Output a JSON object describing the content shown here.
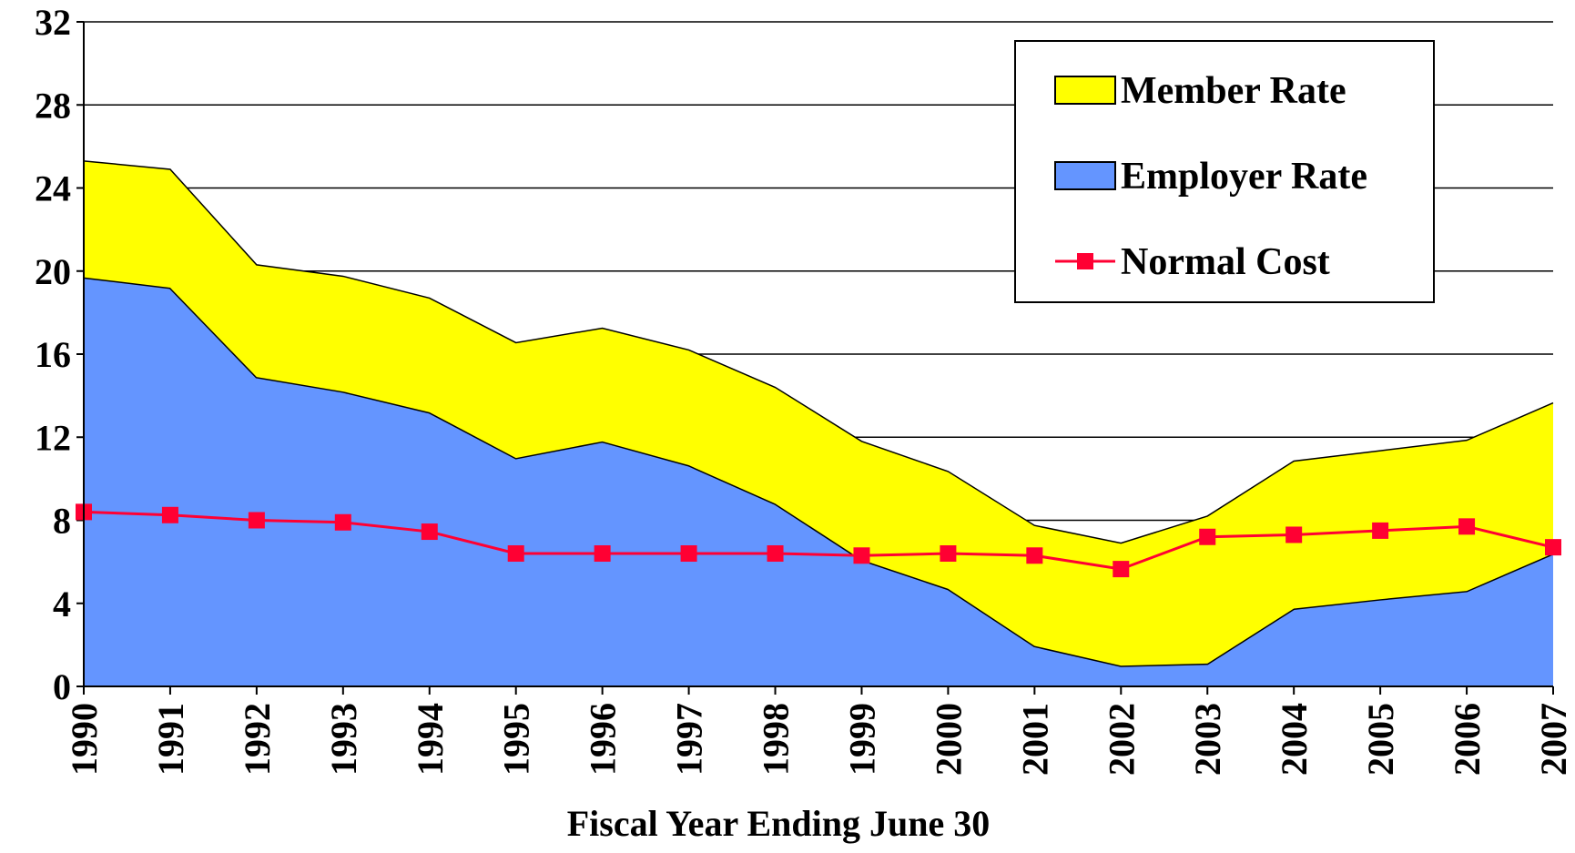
{
  "chart_data": {
    "type": "area",
    "stacked": true,
    "x_label": "Fiscal Year Ending June 30",
    "categories": [
      "1990",
      "1991",
      "1992",
      "1993",
      "1994",
      "1995",
      "1996",
      "1997",
      "1998",
      "1999",
      "2000",
      "2001",
      "2002",
      "2003",
      "2004",
      "2005",
      "2006",
      "2007"
    ],
    "series": [
      {
        "name": "Employer Rate",
        "type": "area",
        "color": "#6495ff",
        "values": [
          19.7,
          19.2,
          14.9,
          14.2,
          13.2,
          11.0,
          11.8,
          10.65,
          8.8,
          6.1,
          4.7,
          1.95,
          1.0,
          1.1,
          3.75,
          4.2,
          4.6,
          6.4
        ]
      },
      {
        "name": "Member Rate",
        "type": "area",
        "color": "#ffff00",
        "values": [
          5.6,
          5.7,
          5.4,
          5.55,
          5.5,
          5.55,
          5.45,
          5.55,
          5.6,
          5.7,
          5.65,
          5.8,
          5.9,
          7.1,
          7.1,
          7.15,
          7.25,
          7.25
        ]
      },
      {
        "name": "Normal Cost",
        "type": "line",
        "color": "#ff0033",
        "values": [
          8.4,
          8.25,
          8.0,
          7.9,
          7.45,
          6.4,
          6.4,
          6.4,
          6.4,
          6.3,
          6.4,
          6.3,
          5.65,
          7.2,
          7.3,
          7.5,
          7.7,
          6.7
        ]
      }
    ],
    "legend_order": [
      1,
      0,
      2
    ],
    "ylim": [
      0,
      32
    ],
    "yticks": [
      0,
      4,
      8,
      12,
      16,
      20,
      24,
      28,
      32
    ],
    "grid": true,
    "legend": "upper right"
  }
}
